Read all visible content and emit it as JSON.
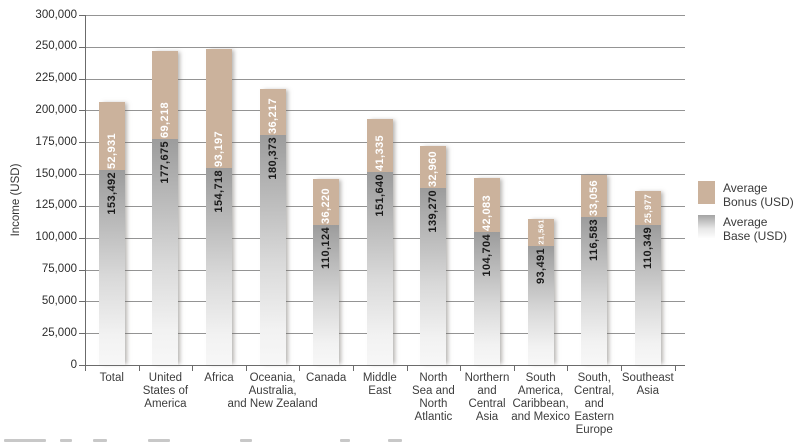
{
  "chart_data": {
    "type": "bar",
    "stacked": true,
    "title": "",
    "xlabel": "",
    "ylabel": "Income (USD)",
    "y_axis": {
      "labels": [
        "300,000",
        "250,000",
        "225,000",
        "200,000",
        "175,000",
        "150,000",
        "125,000",
        "100,000",
        "75,000",
        "50,000",
        "25,000",
        "0"
      ],
      "values": [
        300000,
        250000,
        225000,
        200000,
        175000,
        150000,
        125000,
        100000,
        75000,
        50000,
        25000,
        0
      ],
      "note": "evenly spaced gridlines; 275,000 tick not shown",
      "grid": true
    },
    "categories": [
      "Total",
      "United\nStates of\nAmerica",
      "Africa",
      "Oceania,\nAustralia,\nand New Zealand",
      "Canada",
      "Middle\nEast",
      "North\nSea and\nNorth\nAtlantic",
      "Northern\nand\nCentral\nAsia",
      "South\nAmerica,\nCaribbean,\nand Mexico",
      "South,\nCentral,\nand\nEastern\nEurope",
      "Southeast\nAsia"
    ],
    "series": [
      {
        "name": "Average Base (USD)",
        "values": [
          153492,
          177675,
          154718,
          180373,
          110124,
          151640,
          139270,
          104704,
          93491,
          116583,
          110349
        ],
        "labels": [
          "153,492",
          "177,675",
          "154,718",
          "180,373",
          "110,124",
          "151,640",
          "139,270",
          "104,704",
          "93,491",
          "116,583",
          "110,349"
        ]
      },
      {
        "name": "Average Bonus (USD)",
        "values": [
          52931,
          69218,
          93197,
          36217,
          36220,
          41335,
          32960,
          42083,
          21561,
          33056,
          25977
        ],
        "labels": [
          "52,931",
          "69,218",
          "93,197",
          "36,217",
          "36,220",
          "41,335",
          "32,960",
          "42,083",
          "21,561",
          "33,056",
          "25,977"
        ]
      }
    ],
    "legend": {
      "position": "right",
      "entries": [
        "Average\nBonus (USD)",
        "Average\nBase (USD)"
      ]
    },
    "colors": {
      "bonus": "#cbb29c",
      "base_gradient_top": "#9c9c9c",
      "base_gradient_bottom": "#f7f7f7",
      "grid": "#949494",
      "axis": "#6b6b6b",
      "bonus_value_text": "#ffffff",
      "base_value_text": "#1a1a1a"
    }
  }
}
